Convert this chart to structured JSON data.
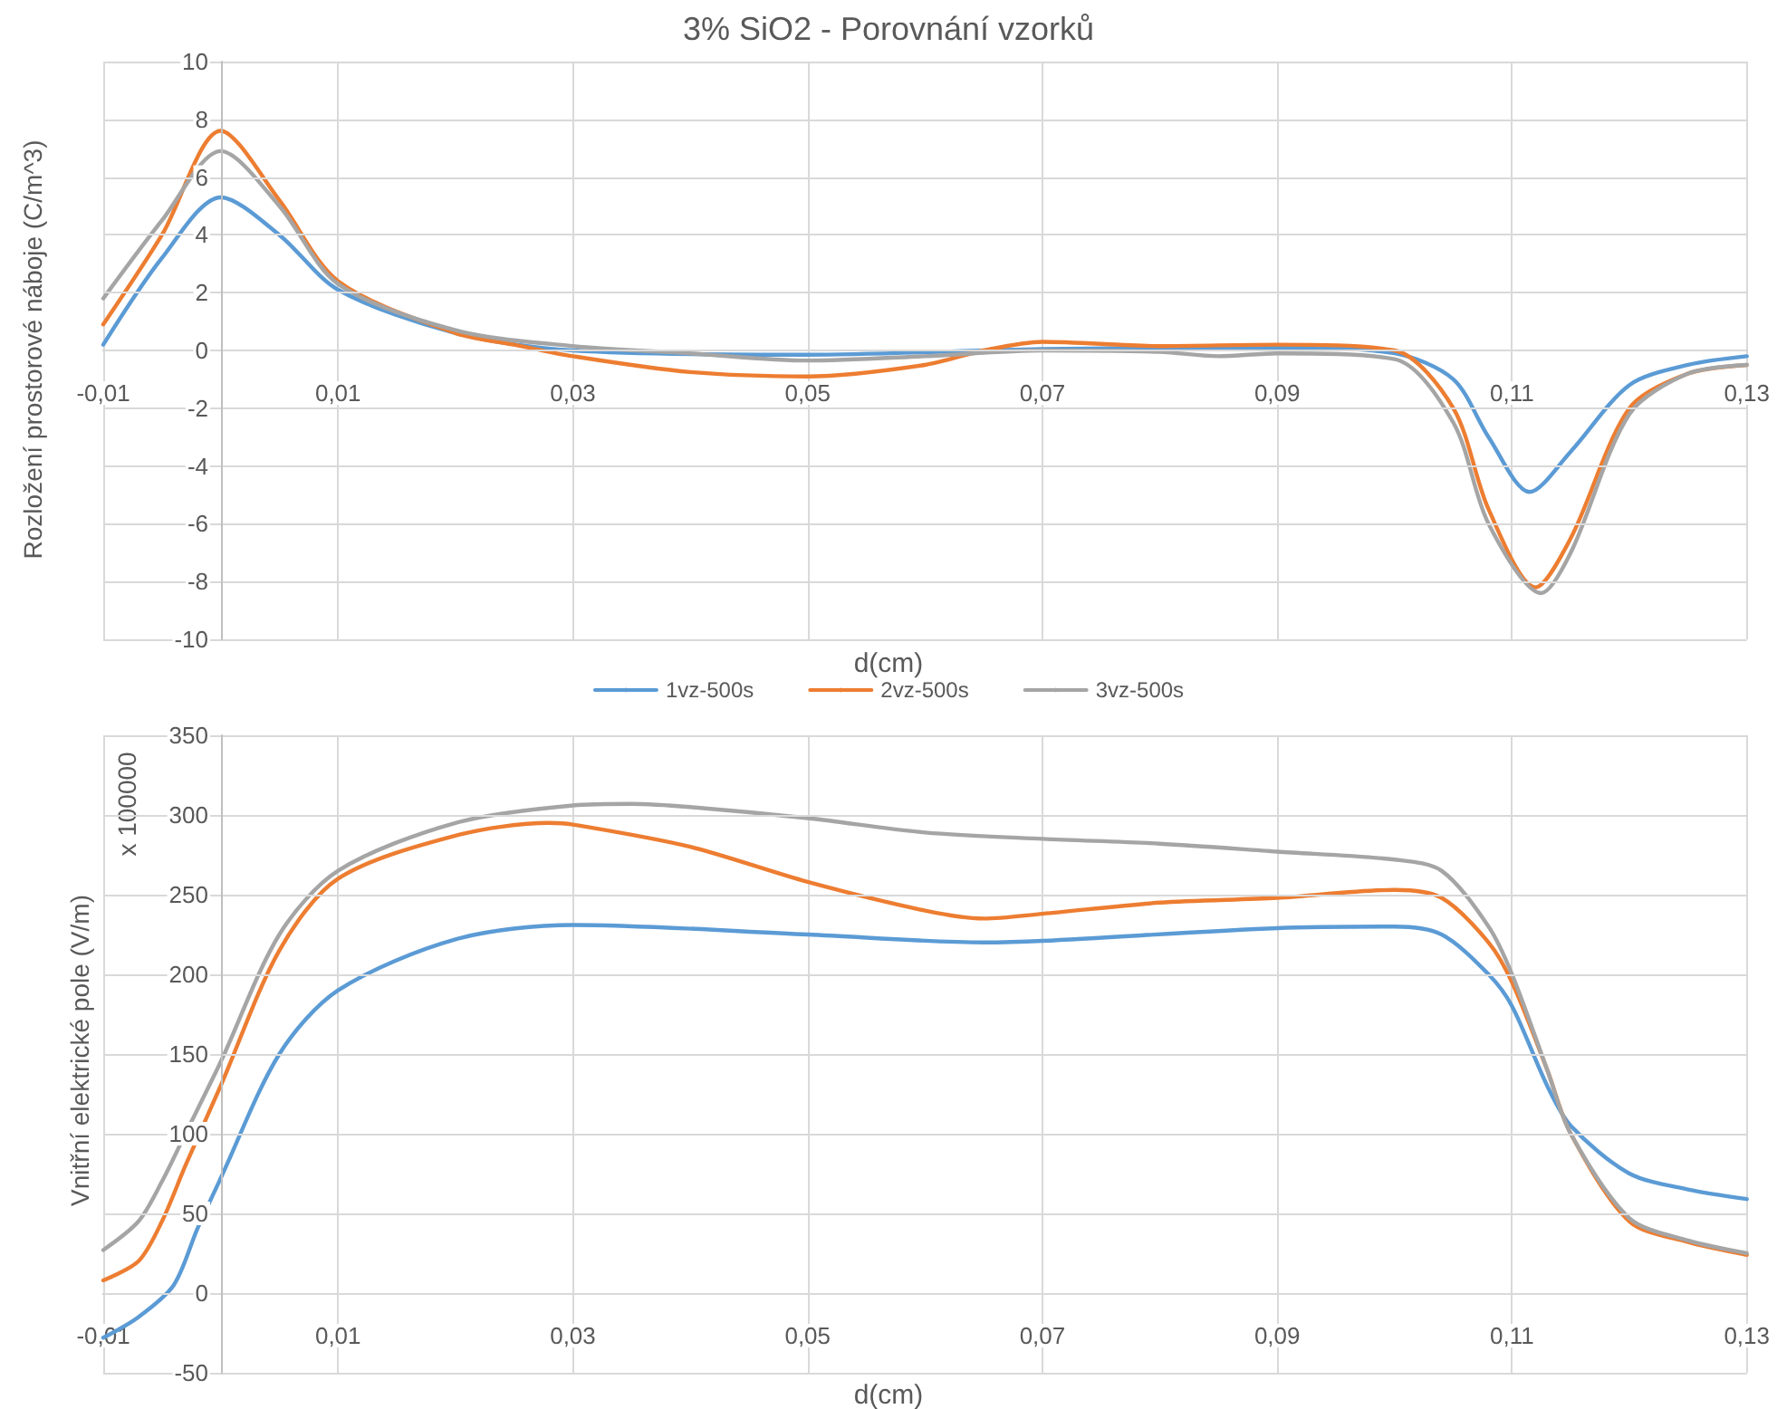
{
  "chart_data": [
    {
      "type": "line",
      "title": "3% SiO2 - Porovnání vzorků",
      "xlabel": "d(cm)",
      "ylabel": "Rozložení prostorové náboje (C/m^3)",
      "marker": "none",
      "grid": true,
      "legend": "bottom",
      "xlim": [
        -0.01,
        0.13
      ],
      "xticks": [
        {
          "value": -0.01,
          "label": "-0,01"
        },
        {
          "value": 0.01,
          "label": "0,01"
        },
        {
          "value": 0.03,
          "label": "0,03"
        },
        {
          "value": 0.05,
          "label": "0,05"
        },
        {
          "value": 0.07,
          "label": "0,07"
        },
        {
          "value": 0.09,
          "label": "0,09"
        },
        {
          "value": 0.11,
          "label": "0,11"
        },
        {
          "value": 0.13,
          "label": "0,13"
        }
      ],
      "ylim": [
        -10,
        10
      ],
      "yticks": [
        -10,
        -8,
        -6,
        -4,
        -2,
        0,
        2,
        4,
        6,
        8,
        10
      ],
      "series": [
        {
          "name": "1vz-500s",
          "color": "#5b9bd5",
          "x": [
            -0.01,
            -0.005,
            0,
            0.005,
            0.01,
            0.02,
            0.03,
            0.05,
            0.07,
            0.09,
            0.1,
            0.105,
            0.108,
            0.1115,
            0.115,
            0.12,
            0.125,
            0.13
          ],
          "values": [
            0.2,
            3.2,
            5.3,
            4.0,
            2.1,
            0.6,
            0,
            -0.15,
            0.05,
            0.1,
            -0.1,
            -1,
            -3,
            -4.9,
            -3.5,
            -1.2,
            -0.5,
            -0.2
          ]
        },
        {
          "name": "2vz-500s",
          "color": "#ed7d31",
          "x": [
            -0.01,
            -0.005,
            0,
            0.005,
            0.01,
            0.02,
            0.025,
            0.03,
            0.04,
            0.05,
            0.06,
            0.065,
            0.07,
            0.08,
            0.09,
            0.1,
            0.105,
            0.108,
            0.112,
            0.115,
            0.12,
            0.125,
            0.13
          ],
          "values": [
            0.9,
            4,
            7.6,
            5.2,
            2.4,
            0.6,
            0.2,
            -0.2,
            -0.75,
            -0.9,
            -0.5,
            0,
            0.3,
            0.15,
            0.2,
            0,
            -2,
            -5.5,
            -8.2,
            -6.5,
            -2,
            -0.8,
            -0.5
          ]
        },
        {
          "name": "3vz-500s",
          "color": "#a5a5a5",
          "x": [
            -0.01,
            -0.005,
            0,
            0.005,
            0.01,
            0.02,
            0.03,
            0.04,
            0.05,
            0.06,
            0.07,
            0.08,
            0.085,
            0.09,
            0.1,
            0.105,
            0.108,
            0.1125,
            0.115,
            0.12,
            0.125,
            0.13
          ],
          "values": [
            1.8,
            4.5,
            6.9,
            5,
            2.3,
            0.7,
            0.15,
            -0.1,
            -0.35,
            -0.2,
            0,
            -0.05,
            -0.2,
            -0.1,
            -0.3,
            -2.5,
            -6,
            -8.4,
            -7,
            -2.2,
            -0.8,
            -0.5
          ]
        }
      ]
    },
    {
      "type": "line",
      "xlabel": "d(cm)",
      "ylabel": "Vnitřní elektrické pole (V/m)",
      "annotations": [
        "x 100000"
      ],
      "marker": "none",
      "grid": true,
      "xlim": [
        -0.01,
        0.13
      ],
      "xticks": [
        {
          "value": -0.01,
          "label": "-0,01"
        },
        {
          "value": 0.01,
          "label": "0,01"
        },
        {
          "value": 0.03,
          "label": "0,03"
        },
        {
          "value": 0.05,
          "label": "0,05"
        },
        {
          "value": 0.07,
          "label": "0,07"
        },
        {
          "value": 0.09,
          "label": "0,09"
        },
        {
          "value": 0.11,
          "label": "0,11"
        },
        {
          "value": 0.13,
          "label": "0,13"
        }
      ],
      "ylim": [
        -50,
        350
      ],
      "yticks": [
        -50,
        0,
        50,
        100,
        150,
        200,
        250,
        300,
        350
      ],
      "series": [
        {
          "color": "#5b9bd5",
          "x": [
            -0.01,
            -0.007,
            -0.004,
            -0.002,
            0,
            0.005,
            0.01,
            0.02,
            0.03,
            0.05,
            0.065,
            0.07,
            0.09,
            0.1,
            0.104,
            0.108,
            0.11,
            0.113,
            0.115,
            0.12,
            0.125,
            0.13
          ],
          "values": [
            -28,
            -15,
            5,
            40,
            72,
            150,
            190,
            222,
            231,
            225,
            220,
            221,
            229,
            230,
            225,
            200,
            180,
            130,
            105,
            75,
            65,
            59
          ]
        },
        {
          "color": "#ed7d31",
          "x": [
            -0.01,
            -0.007,
            -0.005,
            -0.003,
            0,
            0.005,
            0.01,
            0.02,
            0.028,
            0.03,
            0.04,
            0.05,
            0.06,
            0.065,
            0.07,
            0.08,
            0.09,
            0.1,
            0.104,
            0.108,
            0.11,
            0.113,
            0.115,
            0.12,
            0.125,
            0.13
          ],
          "values": [
            8,
            20,
            45,
            80,
            130,
            215,
            260,
            287,
            295,
            294,
            280,
            258,
            240,
            235,
            238,
            245,
            248,
            253,
            248,
            220,
            195,
            140,
            100,
            45,
            32,
            24
          ]
        },
        {
          "color": "#a5a5a5",
          "x": [
            -0.01,
            -0.007,
            -0.005,
            -0.003,
            0,
            0.005,
            0.01,
            0.02,
            0.03,
            0.035,
            0.04,
            0.05,
            0.06,
            0.07,
            0.08,
            0.09,
            0.1,
            0.104,
            0.108,
            0.11,
            0.113,
            0.115,
            0.12,
            0.125,
            0.13
          ],
          "values": [
            27,
            45,
            70,
            100,
            145,
            225,
            265,
            295,
            306,
            307,
            305,
            298,
            289,
            285,
            282,
            277,
            272,
            265,
            230,
            200,
            140,
            100,
            47,
            33,
            25
          ]
        }
      ]
    }
  ]
}
